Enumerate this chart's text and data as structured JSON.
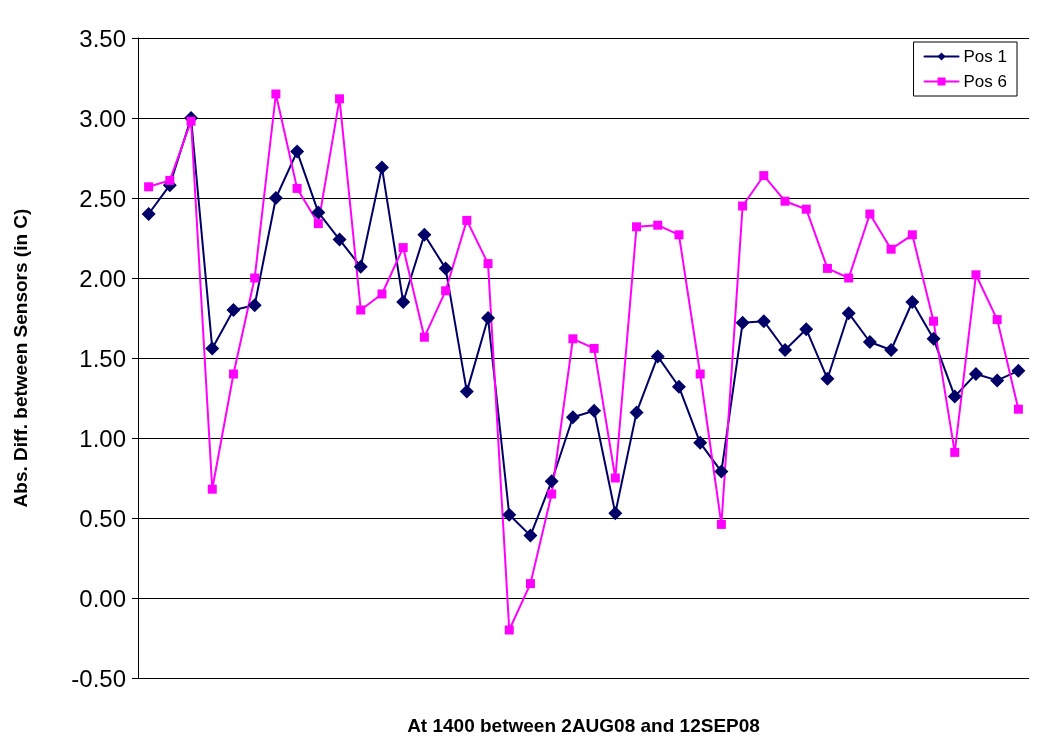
{
  "chart_data": {
    "type": "line",
    "xlabel": "At 1400 between 2AUG08 and 12SEP08",
    "ylabel": "Abs. Diff. between Sensors (in C)",
    "categories": [
      null,
      null,
      null,
      null,
      null,
      null,
      null,
      null,
      null,
      null,
      null,
      null,
      null,
      null,
      null,
      null,
      null,
      null,
      null,
      null,
      null,
      null,
      null,
      null,
      null,
      null,
      null,
      null,
      null,
      null,
      null,
      null,
      null,
      null,
      null,
      null,
      null,
      null,
      null,
      null,
      null,
      null
    ],
    "series": [
      {
        "name": "Pos 1",
        "color": "#000066",
        "marker": "diamond",
        "values": [
          2.4,
          2.58,
          3.0,
          1.56,
          1.8,
          1.83,
          2.5,
          2.79,
          2.41,
          2.24,
          2.07,
          2.69,
          1.85,
          2.27,
          2.06,
          1.29,
          1.75,
          0.52,
          0.39,
          0.73,
          1.13,
          1.17,
          0.53,
          1.16,
          1.51,
          1.32,
          0.97,
          0.79,
          1.72,
          1.73,
          1.55,
          1.68,
          1.37,
          1.78,
          1.6,
          1.55,
          1.85,
          1.62,
          1.26,
          1.4,
          1.36,
          1.42
        ]
      },
      {
        "name": "Pos 6",
        "color": "#ff00ff",
        "marker": "square",
        "values": [
          2.57,
          2.61,
          2.98,
          0.68,
          1.4,
          2.0,
          3.15,
          2.56,
          2.34,
          3.12,
          1.8,
          1.9,
          2.19,
          1.63,
          1.92,
          2.36,
          2.09,
          -0.2,
          0.09,
          0.65,
          1.62,
          1.56,
          0.75,
          2.32,
          2.33,
          2.27,
          1.4,
          0.46,
          2.45,
          2.64,
          2.48,
          2.43,
          2.06,
          2.0,
          2.4,
          2.18,
          2.27,
          1.73,
          0.91,
          2.02,
          1.74,
          1.18
        ]
      }
    ],
    "ylim": [
      -0.5,
      3.5
    ],
    "yticks": [
      {
        "value": -0.5,
        "label": "-0.50"
      },
      {
        "value": 0,
        "label": "0.00"
      },
      {
        "value": 0.5,
        "label": "0.50"
      },
      {
        "value": 1,
        "label": "1.00"
      },
      {
        "value": 1.5,
        "label": "1.50"
      },
      {
        "value": 2,
        "label": "2.00"
      },
      {
        "value": 2.5,
        "label": "2.50"
      },
      {
        "value": 3,
        "label": "3.00"
      },
      {
        "value": 3.5,
        "label": "3.50"
      }
    ],
    "grid": "y",
    "legend": "top right",
    "line_style": "solid"
  }
}
